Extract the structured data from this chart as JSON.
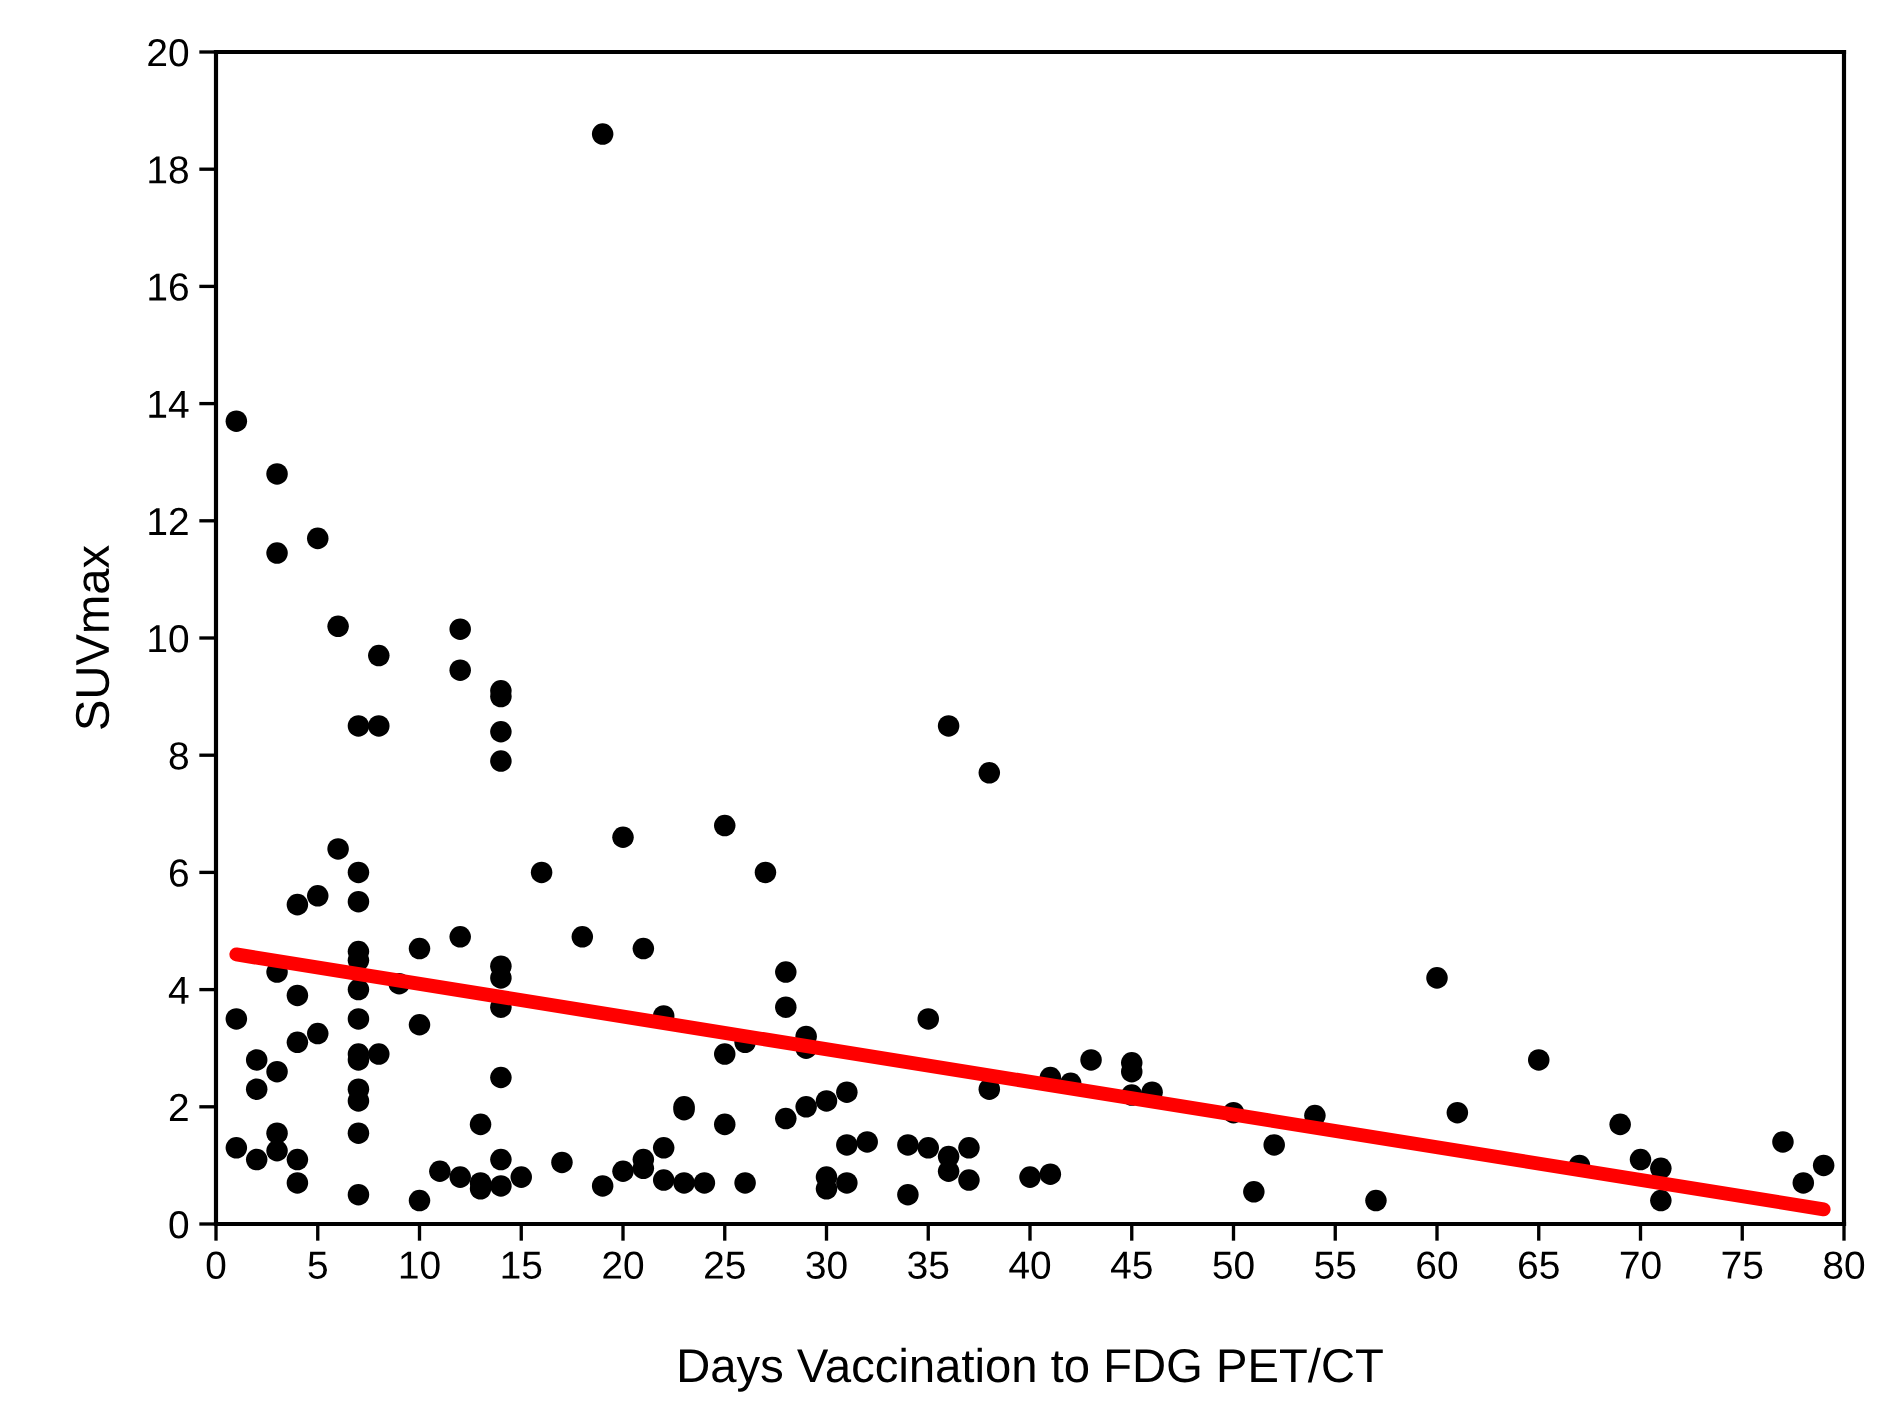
{
  "chart_data": {
    "type": "scatter",
    "xlabel": "Days Vaccination to FDG PET/CT",
    "ylabel": "SUVmax",
    "xlim": [
      0,
      80
    ],
    "ylim": [
      0,
      20
    ],
    "xticks": [
      0,
      5,
      10,
      15,
      20,
      25,
      30,
      35,
      40,
      45,
      50,
      55,
      60,
      65,
      70,
      75,
      80
    ],
    "yticks": [
      0,
      2,
      4,
      6,
      8,
      10,
      12,
      14,
      16,
      18,
      20
    ],
    "grid": false,
    "legend": false,
    "series": [
      {
        "color": "#000000",
        "marker": "circle",
        "x": [
          1,
          1,
          1,
          2,
          2,
          2,
          3,
          3,
          3,
          3,
          3,
          3,
          4,
          4,
          4,
          4,
          4,
          5,
          5,
          5,
          6,
          6,
          7,
          7,
          7,
          7,
          7,
          7,
          7,
          7,
          7,
          7,
          7,
          7,
          7,
          8,
          8,
          8,
          9,
          10,
          10,
          10,
          11,
          12,
          12,
          12,
          12,
          13,
          13,
          13,
          14,
          14,
          14,
          14,
          14,
          14,
          14,
          14,
          14,
          14,
          15,
          16,
          17,
          18,
          19,
          19,
          20,
          20,
          21,
          21,
          21,
          22,
          22,
          22,
          23,
          23,
          23,
          24,
          25,
          25,
          25,
          26,
          26,
          27,
          28,
          28,
          28,
          29,
          29,
          29,
          30,
          30,
          30,
          31,
          31,
          31,
          32,
          34,
          34,
          35,
          35,
          36,
          36,
          36,
          37,
          37,
          38,
          38,
          40,
          41,
          41,
          42,
          43,
          45,
          45,
          45,
          46,
          50,
          51,
          52,
          54,
          57,
          60,
          61,
          65,
          67,
          69,
          70,
          71,
          71,
          77,
          78,
          79
        ],
        "values": [
          13.7,
          3.5,
          1.3,
          2.8,
          2.3,
          1.1,
          12.8,
          11.45,
          4.3,
          2.6,
          1.55,
          1.25,
          5.45,
          3.9,
          3.1,
          1.1,
          0.7,
          11.7,
          5.6,
          3.25,
          10.2,
          6.4,
          8.5,
          6.0,
          5.5,
          4.65,
          4.5,
          4.0,
          3.5,
          2.9,
          2.8,
          2.3,
          2.1,
          1.55,
          0.5,
          9.7,
          8.5,
          2.9,
          4.1,
          4.7,
          3.4,
          0.4,
          0.9,
          10.15,
          9.45,
          4.9,
          0.8,
          1.7,
          0.7,
          0.6,
          9.1,
          9.0,
          8.4,
          7.9,
          4.4,
          4.2,
          3.7,
          2.5,
          1.1,
          0.65,
          0.8,
          6.0,
          1.05,
          4.9,
          18.6,
          0.65,
          6.6,
          0.9,
          4.7,
          1.1,
          0.95,
          3.55,
          1.3,
          0.75,
          2.0,
          1.95,
          0.7,
          0.7,
          6.8,
          2.9,
          1.7,
          3.1,
          0.7,
          6.0,
          4.3,
          3.7,
          1.8,
          3.2,
          3.0,
          2.0,
          2.1,
          0.8,
          0.6,
          2.25,
          1.35,
          0.7,
          1.4,
          1.35,
          0.5,
          3.5,
          1.3,
          8.5,
          1.15,
          0.9,
          1.3,
          0.75,
          7.7,
          2.3,
          0.8,
          2.5,
          0.85,
          2.4,
          2.8,
          2.75,
          2.6,
          2.2,
          2.25,
          1.9,
          0.55,
          1.35,
          1.85,
          0.4,
          4.2,
          1.9,
          2.8,
          1.0,
          1.7,
          1.1,
          0.95,
          0.4,
          1.4,
          0.7,
          1.0
        ]
      },
      {
        "type": "line",
        "color": "#ff0000",
        "marker": "none",
        "line_style": "solid",
        "x": [
          1,
          79
        ],
        "values": [
          4.6,
          0.25
        ]
      }
    ]
  }
}
